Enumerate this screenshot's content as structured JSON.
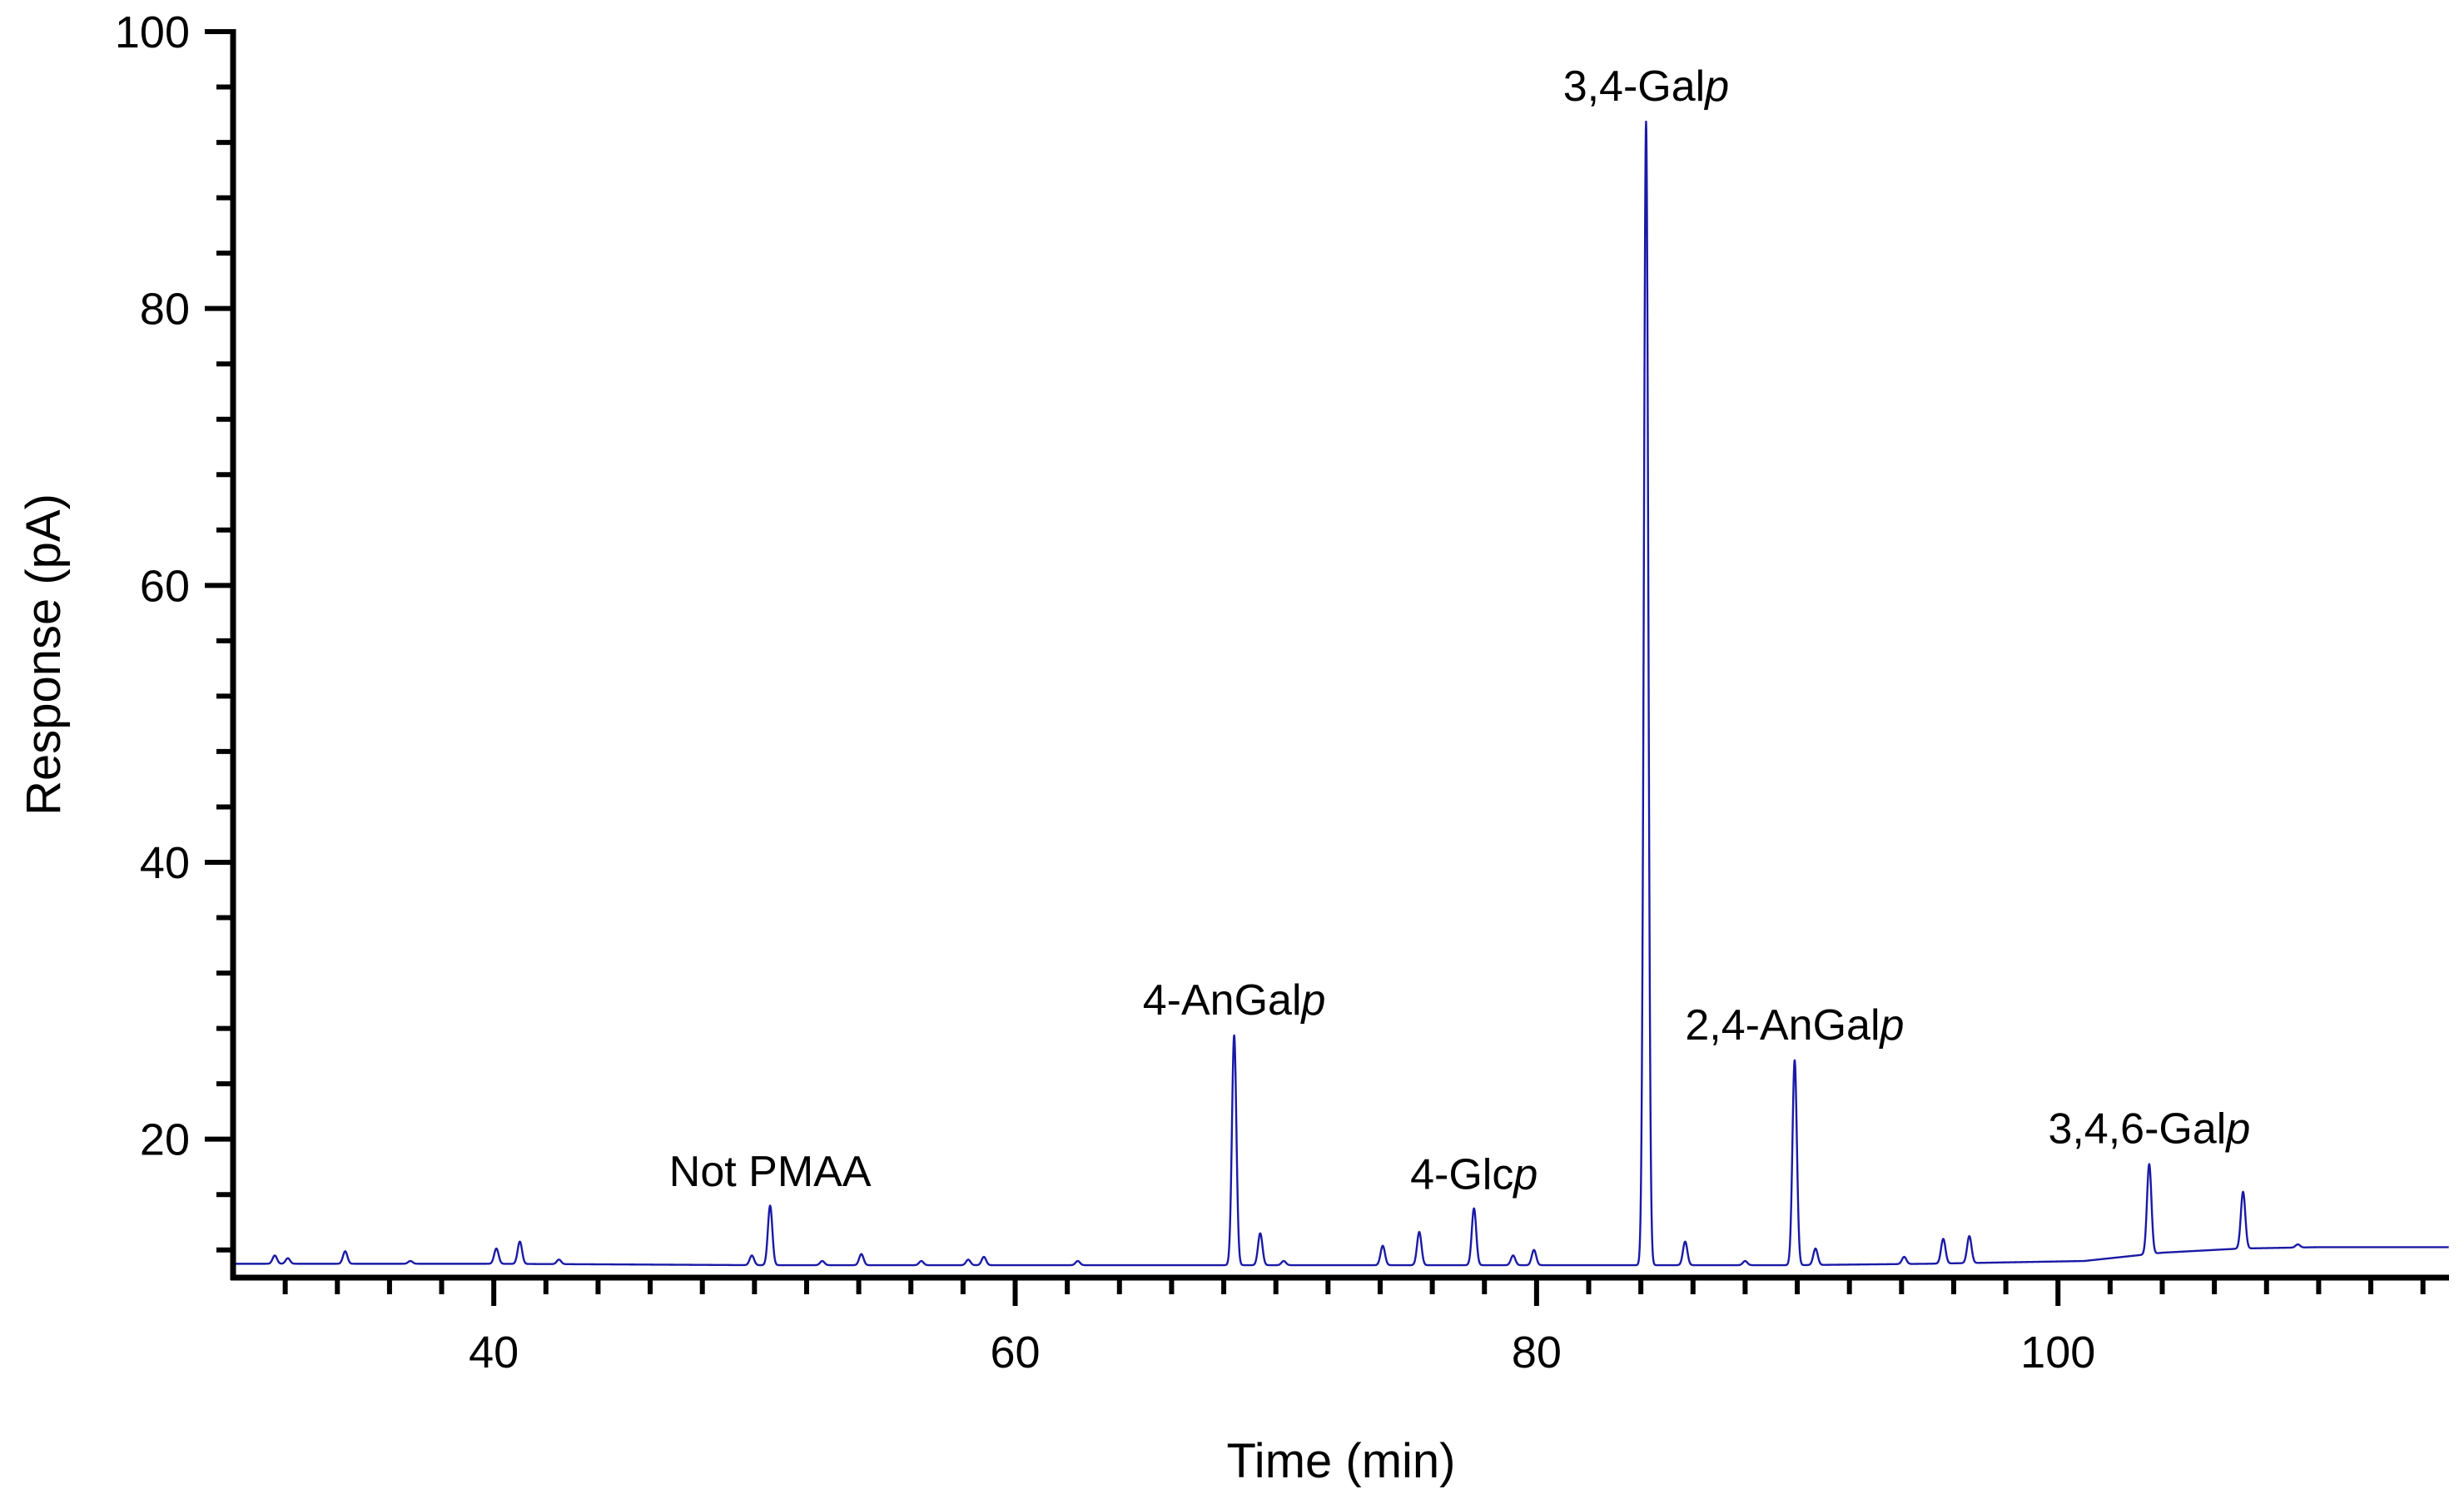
{
  "chart_data": {
    "type": "line",
    "title": "",
    "xlabel": "Time (min)",
    "ylabel": "Response (pA)",
    "xlim": [
      30,
      115
    ],
    "ylim": [
      10,
      100
    ],
    "x_major_ticks": [
      40,
      60,
      80,
      100
    ],
    "x_minor_step": 2,
    "y_major_ticks": [
      20,
      40,
      60,
      80,
      100
    ],
    "y_minor_step": 4,
    "series_color": "#1a1aa6",
    "baseline": [
      [
        30,
        11.0
      ],
      [
        40,
        11.0
      ],
      [
        50,
        10.9
      ],
      [
        60,
        10.9
      ],
      [
        70,
        10.9
      ],
      [
        80,
        10.9
      ],
      [
        90,
        10.9
      ],
      [
        95,
        11.0
      ],
      [
        101,
        11.2
      ],
      [
        103,
        11.6
      ],
      [
        104,
        11.8
      ],
      [
        106,
        12.0
      ],
      [
        107,
        12.1
      ],
      [
        110,
        12.2
      ],
      [
        115,
        12.2
      ]
    ],
    "peaks": [
      {
        "t": 31.6,
        "height": 11.6
      },
      {
        "t": 32.1,
        "height": 11.4
      },
      {
        "t": 34.3,
        "height": 11.9
      },
      {
        "t": 36.8,
        "height": 11.2
      },
      {
        "t": 40.1,
        "height": 12.1
      },
      {
        "t": 41.0,
        "height": 12.6
      },
      {
        "t": 42.5,
        "height": 11.3
      },
      {
        "t": 49.9,
        "height": 11.6
      },
      {
        "t": 50.6,
        "height": 15.2
      },
      {
        "t": 52.6,
        "height": 11.2
      },
      {
        "t": 54.1,
        "height": 11.7
      },
      {
        "t": 56.4,
        "height": 11.2
      },
      {
        "t": 58.2,
        "height": 11.3
      },
      {
        "t": 58.8,
        "height": 11.5
      },
      {
        "t": 62.4,
        "height": 11.2
      },
      {
        "t": 68.4,
        "height": 27.5
      },
      {
        "t": 69.4,
        "height": 13.2
      },
      {
        "t": 70.3,
        "height": 11.2
      },
      {
        "t": 74.1,
        "height": 12.3
      },
      {
        "t": 75.5,
        "height": 13.3
      },
      {
        "t": 77.6,
        "height": 15.0
      },
      {
        "t": 79.1,
        "height": 11.6
      },
      {
        "t": 79.9,
        "height": 12.0
      },
      {
        "t": 84.2,
        "height": 93.5
      },
      {
        "t": 85.7,
        "height": 12.6
      },
      {
        "t": 88.0,
        "height": 11.2
      },
      {
        "t": 89.9,
        "height": 25.7
      },
      {
        "t": 90.7,
        "height": 12.1
      },
      {
        "t": 94.1,
        "height": 11.5
      },
      {
        "t": 95.6,
        "height": 12.8
      },
      {
        "t": 96.6,
        "height": 13.0
      },
      {
        "t": 103.5,
        "height": 18.2
      },
      {
        "t": 107.1,
        "height": 16.2
      },
      {
        "t": 109.2,
        "height": 12.4
      }
    ],
    "annotations": [
      {
        "text": "Not PMAA",
        "x": 50.6,
        "y": 16.6,
        "italic_suffix": ""
      },
      {
        "text": "4-AnGal",
        "x": 68.4,
        "y": 29.0,
        "italic_suffix": "p"
      },
      {
        "text": "4-Glc",
        "x": 77.6,
        "y": 16.4,
        "italic_suffix": "p"
      },
      {
        "text": "3,4-Gal",
        "x": 84.2,
        "y": 95.0,
        "italic_suffix": "p"
      },
      {
        "text": "2,4-AnGal",
        "x": 89.9,
        "y": 27.2,
        "italic_suffix": "p"
      },
      {
        "text": "3,4,6-Gal",
        "x": 103.5,
        "y": 19.7,
        "italic_suffix": "p"
      }
    ]
  }
}
